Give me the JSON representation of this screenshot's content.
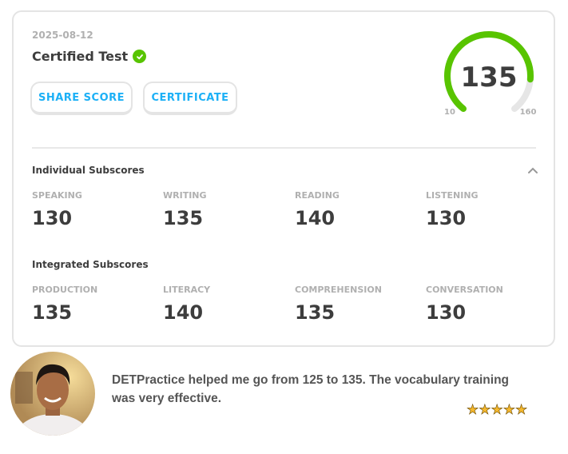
{
  "score_card": {
    "date": "2025-08-12",
    "title": "Certified Test",
    "verified_icon": "check-circle-icon",
    "buttons": {
      "share": "SHARE SCORE",
      "certificate": "CERTIFICATE"
    },
    "gauge": {
      "score": "135",
      "min": "10",
      "max": "160",
      "value": 135,
      "color": "#58c400",
      "track_color": "#e6e6e6"
    },
    "individual": {
      "heading": "Individual Subscores",
      "items": [
        {
          "label": "SPEAKING",
          "value": "130"
        },
        {
          "label": "WRITING",
          "value": "135"
        },
        {
          "label": "READING",
          "value": "140"
        },
        {
          "label": "LISTENING",
          "value": "130"
        }
      ]
    },
    "integrated": {
      "heading": "Integrated Subscores",
      "items": [
        {
          "label": "PRODUCTION",
          "value": "135"
        },
        {
          "label": "LITERACY",
          "value": "140"
        },
        {
          "label": "COMPREHENSION",
          "value": "135"
        },
        {
          "label": "CONVERSATION",
          "value": "130"
        }
      ]
    }
  },
  "testimonial": {
    "quote": "DETPractice helped me go from 125 to 135. The vocabulary training was very effective.",
    "rating": 5,
    "stars": "★★★★★"
  },
  "colors": {
    "accent": "#1cb0f6",
    "success": "#58c400"
  }
}
